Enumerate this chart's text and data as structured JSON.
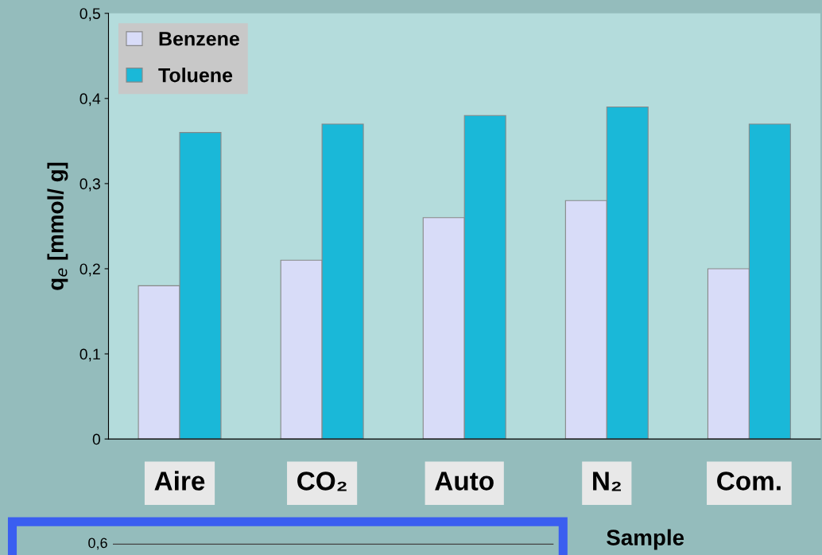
{
  "chart_data": [
    {
      "type": "bar",
      "ylabel": "q$_{e}$ [mmol/ g]",
      "xlabel": "Sample",
      "categories": [
        "Aire",
        "CO₂",
        "Auto",
        "N₂",
        "Com."
      ],
      "series": [
        {
          "name": "Benzene",
          "color": "#d8dcf8",
          "values": [
            0.18,
            0.21,
            0.26,
            0.28,
            0.2
          ]
        },
        {
          "name": "Toluene",
          "color": "#1ab8d8",
          "values": [
            0.36,
            0.37,
            0.38,
            0.39,
            0.37
          ]
        }
      ],
      "ylim": [
        0,
        0.5
      ],
      "yticks": [
        {
          "value": 0,
          "label": "0"
        },
        {
          "value": 0.1,
          "label": "0,1"
        },
        {
          "value": 0.2,
          "label": "0,2"
        },
        {
          "value": 0.3,
          "label": "0,3"
        },
        {
          "value": 0.4,
          "label": "0,4"
        },
        {
          "value": 0.5,
          "label": "0,5"
        }
      ],
      "legend": "top left",
      "grid": false
    },
    {
      "type": "other",
      "annotations": [
        "0,6"
      ]
    }
  ]
}
